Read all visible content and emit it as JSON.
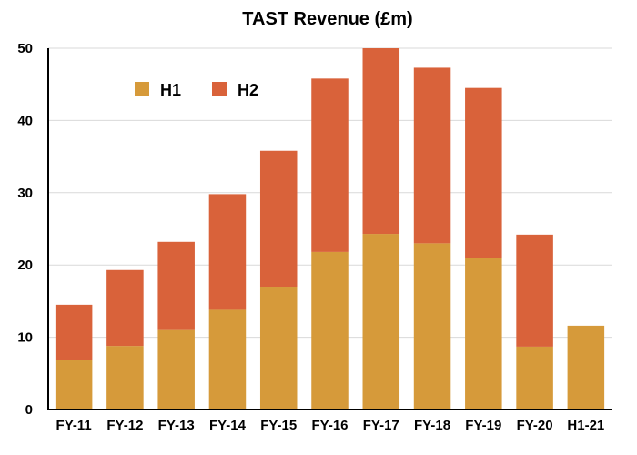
{
  "chart_data": {
    "type": "bar",
    "stacked": true,
    "title": "TAST Revenue (£m)",
    "xlabel": "",
    "ylabel": "",
    "ylim": [
      0,
      50
    ],
    "yticks": [
      0,
      10,
      20,
      30,
      40,
      50
    ],
    "grid": true,
    "legend_position": "top-left",
    "categories": [
      "FY-11",
      "FY-12",
      "FY-13",
      "FY-14",
      "FY-15",
      "FY-16",
      "FY-17",
      "FY-18",
      "FY-19",
      "FY-20",
      "H1-21"
    ],
    "series": [
      {
        "name": "H1",
        "color": "#d69a3a",
        "values": [
          6.8,
          8.8,
          11.0,
          13.8,
          17.0,
          21.8,
          24.3,
          23.0,
          21.0,
          8.7,
          11.6
        ]
      },
      {
        "name": "H2",
        "color": "#d9623a",
        "values": [
          7.7,
          10.5,
          12.2,
          16.0,
          18.8,
          24.0,
          25.7,
          24.3,
          23.5,
          15.5,
          0
        ]
      }
    ]
  }
}
